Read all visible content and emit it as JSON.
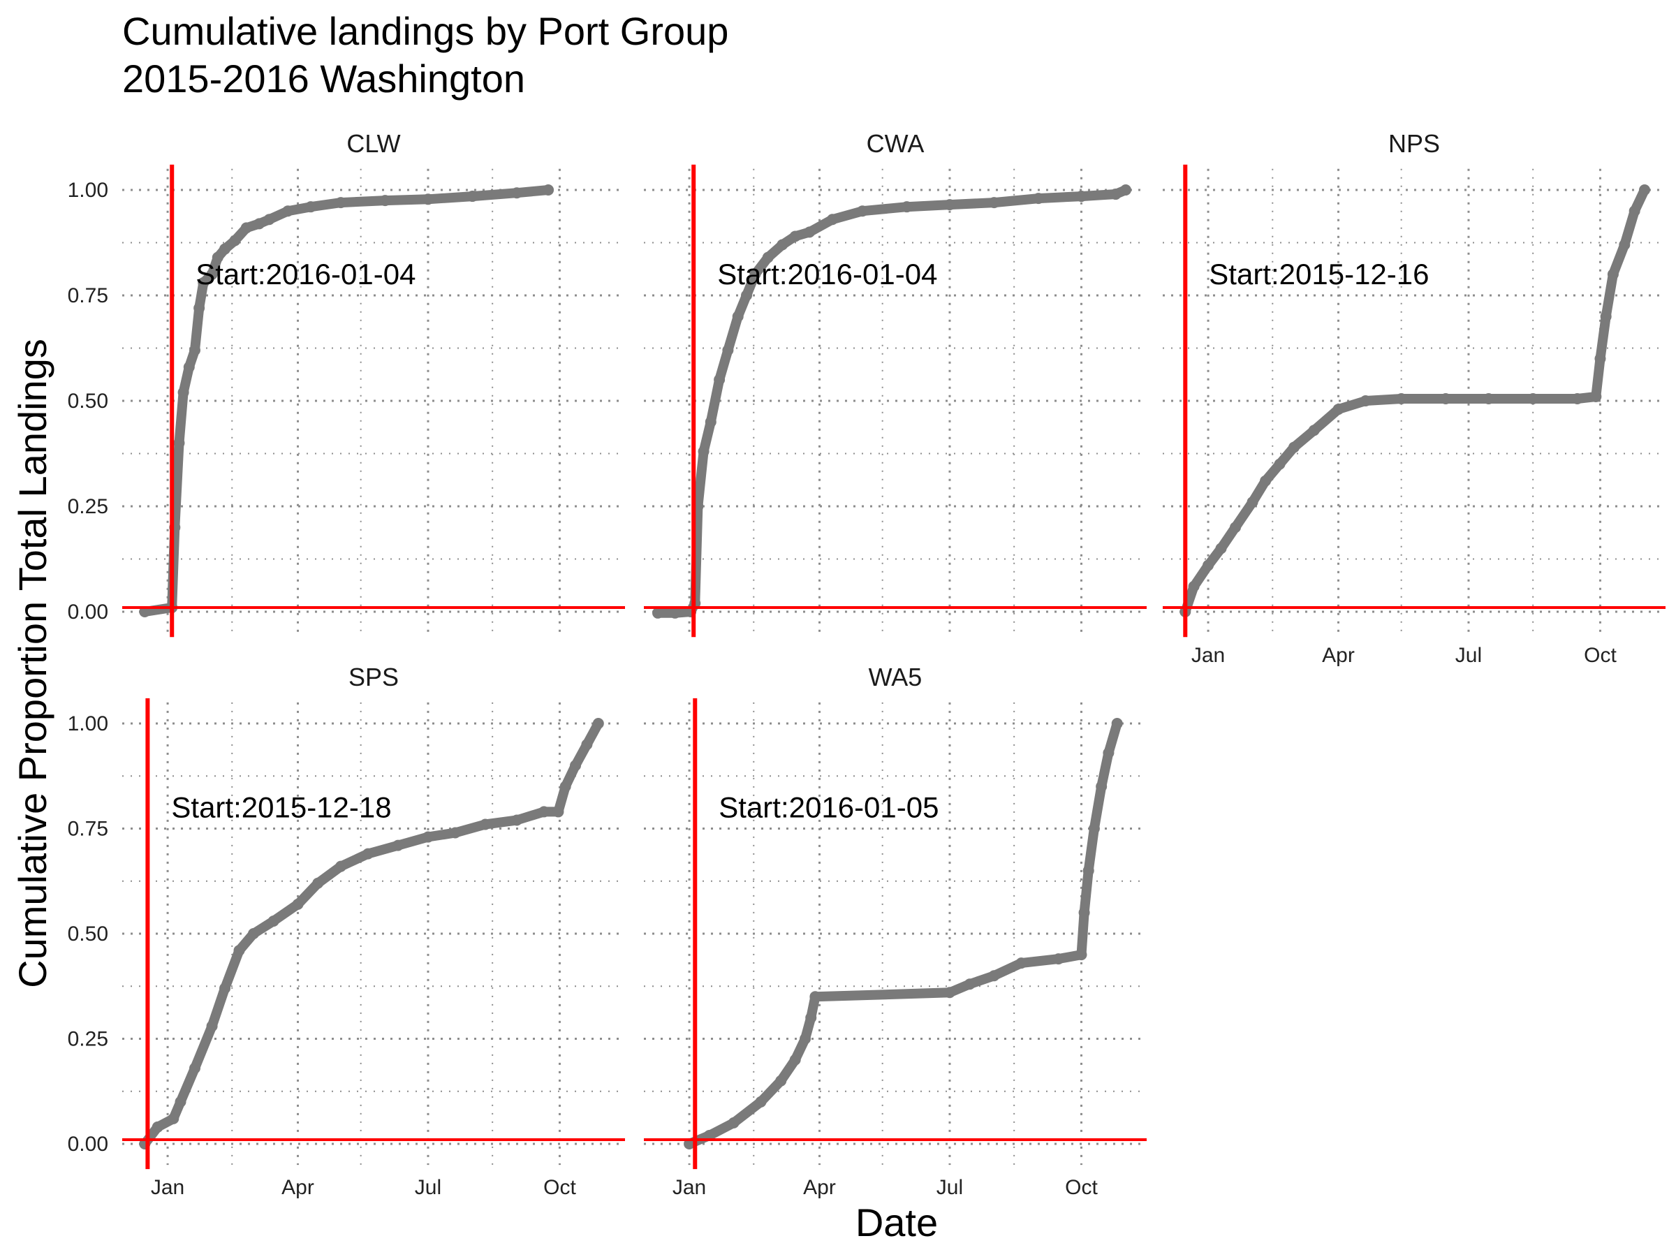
{
  "title": {
    "line1": "Cumulative landings by Port Group",
    "line2": "2015-2016 Washington"
  },
  "chart_data": {
    "type": "line",
    "xlabel": "Date",
    "ylabel": "Cumulative Proportion Total Landings",
    "ylim": [
      0,
      1
    ],
    "y_ticks": [
      0,
      0.25,
      0.5,
      0.75,
      1
    ],
    "y_tick_labels": [
      "0.00",
      "0.25",
      "0.50",
      "0.75",
      "1.00"
    ],
    "x_range": [
      "2015-12-10",
      "2016-11-01"
    ],
    "x_ticks": [
      "2016-01-01",
      "2016-04-01",
      "2016-07-01",
      "2016-10-01"
    ],
    "x_tick_labels": [
      "Jan",
      "Apr",
      "Jul",
      "Oct"
    ],
    "grid": true,
    "colors": {
      "line": "#7a7a7a",
      "reference": "#ff0000",
      "grid": "#8c8c8c"
    },
    "facets": [
      {
        "name": "CLW",
        "start_label": "Start:2016-01-04",
        "start_date": "2016-01-04",
        "points": [
          [
            "2015-12-16",
            0
          ],
          [
            "2016-01-04",
            0.01
          ],
          [
            "2016-01-06",
            0.2
          ],
          [
            "2016-01-09",
            0.4
          ],
          [
            "2016-01-12",
            0.52
          ],
          [
            "2016-01-16",
            0.58
          ],
          [
            "2016-01-20",
            0.62
          ],
          [
            "2016-01-23",
            0.72
          ],
          [
            "2016-01-26",
            0.78
          ],
          [
            "2016-02-01",
            0.8
          ],
          [
            "2016-02-05",
            0.84
          ],
          [
            "2016-02-10",
            0.86
          ],
          [
            "2016-02-17",
            0.88
          ],
          [
            "2016-02-25",
            0.91
          ],
          [
            "2016-03-05",
            0.92
          ],
          [
            "2016-03-12",
            0.93
          ],
          [
            "2016-03-25",
            0.95
          ],
          [
            "2016-04-10",
            0.96
          ],
          [
            "2016-05-01",
            0.97
          ],
          [
            "2016-06-01",
            0.975
          ],
          [
            "2016-07-01",
            0.978
          ],
          [
            "2016-08-01",
            0.985
          ],
          [
            "2016-09-01",
            0.993
          ],
          [
            "2016-09-23",
            1.0
          ]
        ]
      },
      {
        "name": "CWA",
        "start_label": "Start:2016-01-04",
        "start_date": "2016-01-04",
        "points": [
          [
            "2015-12-10",
            -0.003
          ],
          [
            "2015-12-22",
            -0.003
          ],
          [
            "2016-01-02",
            0
          ],
          [
            "2016-01-05",
            0.02
          ],
          [
            "2016-01-07",
            0.25
          ],
          [
            "2016-01-11",
            0.38
          ],
          [
            "2016-01-16",
            0.45
          ],
          [
            "2016-01-22",
            0.55
          ],
          [
            "2016-01-28",
            0.62
          ],
          [
            "2016-02-04",
            0.7
          ],
          [
            "2016-02-10",
            0.75
          ],
          [
            "2016-02-16",
            0.8
          ],
          [
            "2016-02-25",
            0.84
          ],
          [
            "2016-03-06",
            0.87
          ],
          [
            "2016-03-15",
            0.89
          ],
          [
            "2016-03-25",
            0.9
          ],
          [
            "2016-04-10",
            0.93
          ],
          [
            "2016-05-01",
            0.95
          ],
          [
            "2016-06-01",
            0.96
          ],
          [
            "2016-07-01",
            0.965
          ],
          [
            "2016-08-01",
            0.97
          ],
          [
            "2016-09-01",
            0.98
          ],
          [
            "2016-10-01",
            0.985
          ],
          [
            "2016-10-25",
            0.99
          ],
          [
            "2016-11-01",
            1.0
          ]
        ]
      },
      {
        "name": "NPS",
        "start_label": "Start:2015-12-16",
        "start_date": "2015-12-16",
        "points": [
          [
            "2015-12-16",
            0
          ],
          [
            "2015-12-22",
            0.06
          ],
          [
            "2016-01-01",
            0.11
          ],
          [
            "2016-01-10",
            0.15
          ],
          [
            "2016-01-20",
            0.2
          ],
          [
            "2016-02-01",
            0.26
          ],
          [
            "2016-02-10",
            0.31
          ],
          [
            "2016-02-20",
            0.35
          ],
          [
            "2016-03-01",
            0.39
          ],
          [
            "2016-03-15",
            0.43
          ],
          [
            "2016-04-01",
            0.48
          ],
          [
            "2016-04-20",
            0.5
          ],
          [
            "2016-05-15",
            0.505
          ],
          [
            "2016-06-15",
            0.505
          ],
          [
            "2016-07-15",
            0.505
          ],
          [
            "2016-08-15",
            0.505
          ],
          [
            "2016-09-15",
            0.505
          ],
          [
            "2016-09-28",
            0.51
          ],
          [
            "2016-10-01",
            0.6
          ],
          [
            "2016-10-05",
            0.7
          ],
          [
            "2016-10-10",
            0.8
          ],
          [
            "2016-10-18",
            0.87
          ],
          [
            "2016-10-25",
            0.95
          ],
          [
            "2016-11-01",
            1.0
          ]
        ]
      },
      {
        "name": "SPS",
        "start_label": "Start:2015-12-18",
        "start_date": "2015-12-18",
        "points": [
          [
            "2015-12-16",
            0
          ],
          [
            "2015-12-25",
            0.04
          ],
          [
            "2016-01-05",
            0.06
          ],
          [
            "2016-01-10",
            0.1
          ],
          [
            "2016-01-20",
            0.18
          ],
          [
            "2016-02-01",
            0.28
          ],
          [
            "2016-02-10",
            0.37
          ],
          [
            "2016-02-20",
            0.46
          ],
          [
            "2016-03-01",
            0.5
          ],
          [
            "2016-03-15",
            0.53
          ],
          [
            "2016-04-01",
            0.57
          ],
          [
            "2016-04-15",
            0.62
          ],
          [
            "2016-05-01",
            0.66
          ],
          [
            "2016-05-20",
            0.69
          ],
          [
            "2016-06-10",
            0.71
          ],
          [
            "2016-07-01",
            0.73
          ],
          [
            "2016-07-20",
            0.74
          ],
          [
            "2016-08-10",
            0.76
          ],
          [
            "2016-09-01",
            0.77
          ],
          [
            "2016-09-20",
            0.79
          ],
          [
            "2016-09-30",
            0.79
          ],
          [
            "2016-10-05",
            0.85
          ],
          [
            "2016-10-12",
            0.9
          ],
          [
            "2016-10-20",
            0.95
          ],
          [
            "2016-10-28",
            1.0
          ]
        ]
      },
      {
        "name": "WA5",
        "start_label": "Start:2016-01-05",
        "start_date": "2016-01-05",
        "points": [
          [
            "2016-01-01",
            0
          ],
          [
            "2016-01-15",
            0.02
          ],
          [
            "2016-02-01",
            0.05
          ],
          [
            "2016-02-20",
            0.1
          ],
          [
            "2016-03-05",
            0.15
          ],
          [
            "2016-03-15",
            0.2
          ],
          [
            "2016-03-22",
            0.25
          ],
          [
            "2016-03-26",
            0.3
          ],
          [
            "2016-03-29",
            0.35
          ],
          [
            "2016-07-01",
            0.36
          ],
          [
            "2016-07-15",
            0.38
          ],
          [
            "2016-08-01",
            0.4
          ],
          [
            "2016-08-20",
            0.43
          ],
          [
            "2016-09-15",
            0.44
          ],
          [
            "2016-10-01",
            0.45
          ],
          [
            "2016-10-03",
            0.55
          ],
          [
            "2016-10-06",
            0.65
          ],
          [
            "2016-10-10",
            0.75
          ],
          [
            "2016-10-15",
            0.85
          ],
          [
            "2016-10-20",
            0.93
          ],
          [
            "2016-10-26",
            1.0
          ]
        ]
      }
    ]
  }
}
